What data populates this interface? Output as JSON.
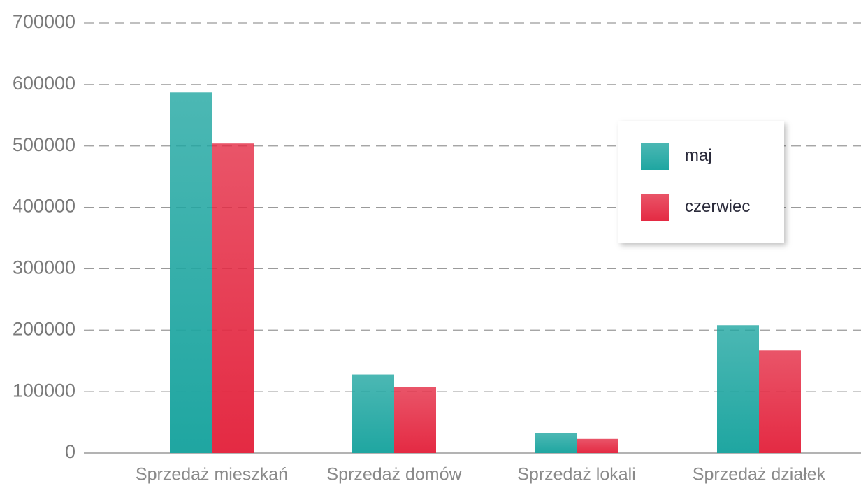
{
  "chart_data": {
    "type": "bar",
    "categories": [
      "Sprzedaż mieszkań",
      "Sprzedaż domów",
      "Sprzedaż lokali",
      "Sprzedaż działek"
    ],
    "series": [
      {
        "name": "maj",
        "color": "#1fa6a1",
        "values": [
          587000,
          128000,
          32000,
          208000
        ]
      },
      {
        "name": "czerwiec",
        "color": "#e42a43",
        "values": [
          504000,
          107000,
          23000,
          167000
        ]
      }
    ],
    "ylim": [
      0,
      700000
    ],
    "yticks": [
      0,
      100000,
      200000,
      300000,
      400000,
      500000,
      600000,
      700000
    ],
    "grid": true,
    "legend": "upper right"
  }
}
